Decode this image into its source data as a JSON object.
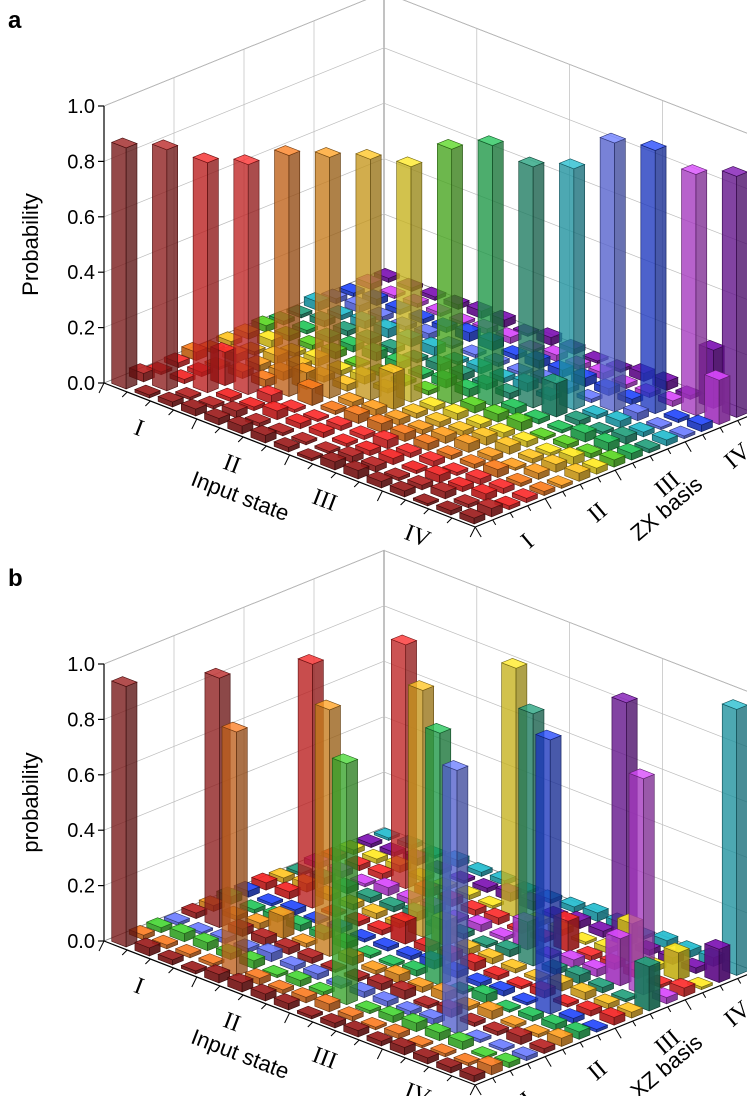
{
  "chart_data": [
    {
      "type": "bar3d",
      "panel_label": "a",
      "title": "",
      "zlabel": "Probability",
      "xlabel": "Input state",
      "ylabel": "ZX basis",
      "x_tick_labels": [
        "I",
        "II",
        "III",
        "IV"
      ],
      "y_tick_labels": [
        "I",
        "II",
        "III",
        "IV"
      ],
      "z_ticks": [
        "0.0",
        "0.2",
        "0.4",
        "0.6",
        "0.8",
        "1.0"
      ],
      "zlim": [
        0,
        1.0
      ],
      "grid_size": 16,
      "diagonal_values": [
        0.87,
        0.87,
        0.83,
        0.83,
        0.87,
        0.87,
        0.87,
        0.85,
        0.92,
        0.94,
        0.87,
        0.87,
        0.97,
        0.95,
        0.87,
        0.87
      ],
      "notable_offdiagonal": [
        {
          "row": 2,
          "col": 3,
          "value": 0.12
        },
        {
          "row": 7,
          "col": 6,
          "value": 0.13
        },
        {
          "row": 11,
          "col": 10,
          "value": 0.12
        },
        {
          "row": 14,
          "col": 15,
          "value": 0.21
        },
        {
          "row": 15,
          "col": 14,
          "value": 0.16
        },
        {
          "row": 4,
          "col": 5,
          "value": 0.06
        },
        {
          "row": 5,
          "col": 4,
          "value": 0.06
        }
      ],
      "background_level": 0.02,
      "row_colors": [
        "#8b1a1a",
        "#a52020",
        "#d92020",
        "#e02828",
        "#e0701a",
        "#e8901e",
        "#e8b020",
        "#e8d020",
        "#50c020",
        "#20b050",
        "#209070",
        "#20a8b8",
        "#6070f0",
        "#2040e0",
        "#c040e0",
        "#7010a0"
      ]
    },
    {
      "type": "bar3d",
      "panel_label": "b",
      "title": "",
      "zlabel": "probability",
      "xlabel": "Input state",
      "ylabel": "XZ basis",
      "x_tick_labels": [
        "I",
        "II",
        "III",
        "IV"
      ],
      "y_tick_labels": [
        "I",
        "II",
        "III",
        "IV"
      ],
      "z_ticks": [
        "0.0",
        "0.2",
        "0.4",
        "0.6",
        "0.8",
        "1.0"
      ],
      "zlim": [
        0,
        1.0
      ],
      "grid_size": 16,
      "peak_columns": [
        0,
        4,
        8,
        12,
        1,
        5,
        9,
        13,
        2,
        6,
        10,
        14,
        3,
        7,
        11,
        15
      ],
      "peak_values": [
        0.94,
        0.9,
        0.88,
        0.88,
        0.88,
        0.89,
        0.89,
        0.9,
        0.87,
        0.91,
        0.91,
        0.88,
        0.95,
        0.99,
        0.78,
        0.96
      ],
      "notable_offdiagonal": [
        {
          "row": 3,
          "col": 5,
          "value": 0.08
        },
        {
          "row": 7,
          "col": 9,
          "value": 0.09
        },
        {
          "row": 10,
          "col": 12,
          "value": 0.11
        },
        {
          "row": 12,
          "col": 13,
          "value": 0.14
        },
        {
          "row": 13,
          "col": 11,
          "value": 0.17
        },
        {
          "row": 14,
          "col": 13,
          "value": 0.1
        },
        {
          "row": 15,
          "col": 10,
          "value": 0.16
        },
        {
          "row": 15,
          "col": 14,
          "value": 0.12
        },
        {
          "row": 6,
          "col": 8,
          "value": 0.08
        },
        {
          "row": 9,
          "col": 11,
          "value": 0.1
        }
      ],
      "background_level": 0.02,
      "row_colors": [
        "#8b1a1a",
        "#e07020",
        "#40c030",
        "#6070f0",
        "#a52020",
        "#e8901e",
        "#20b050",
        "#2040e0",
        "#d92020",
        "#e8b020",
        "#209070",
        "#c040e0",
        "#e02828",
        "#e8d020",
        "#7010a0",
        "#20a8b8"
      ]
    }
  ]
}
